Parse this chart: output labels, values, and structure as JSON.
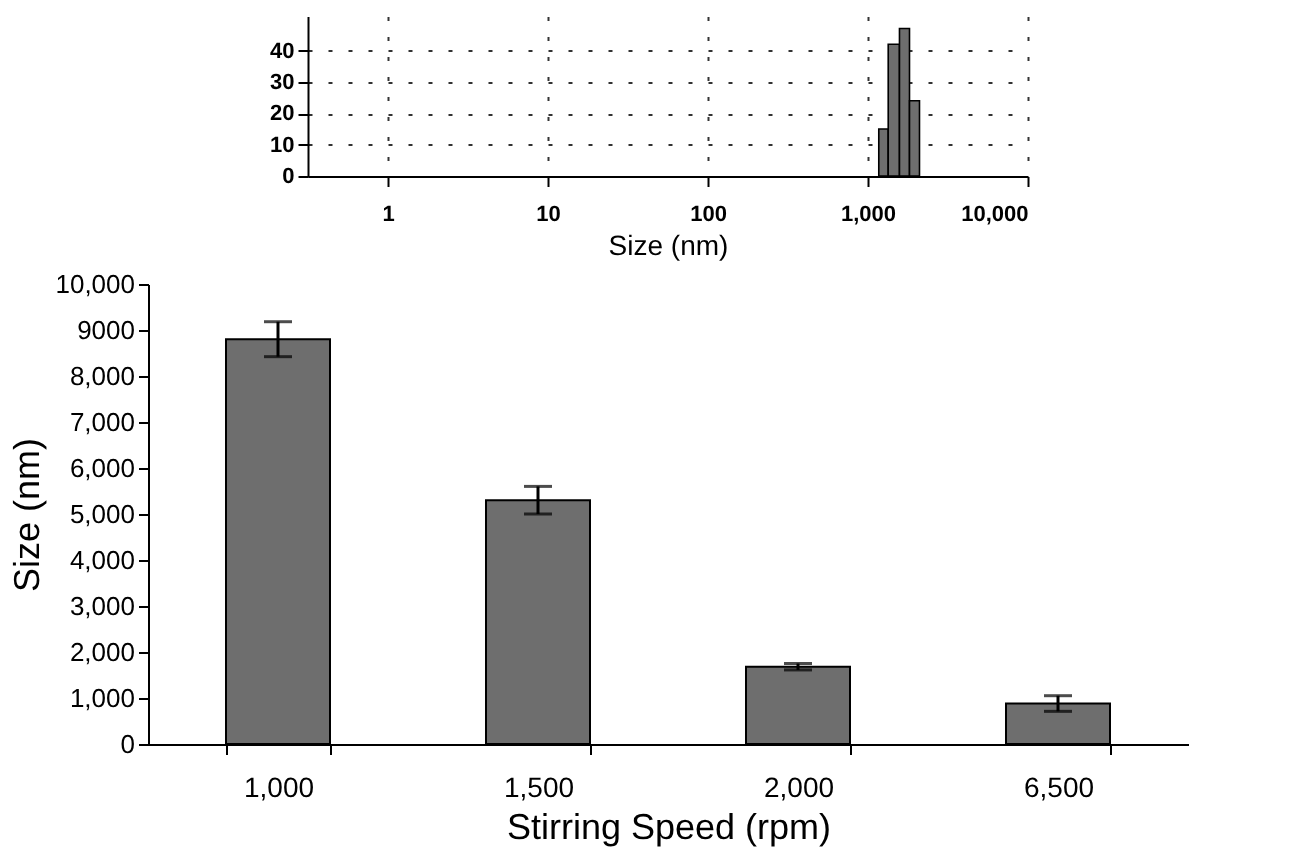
{
  "chart_data": [
    {
      "type": "bar",
      "xlabel": "Stirring Speed (rpm)",
      "ylabel": "Size (nm)",
      "categories": [
        "1,000",
        "1,500",
        "2,000",
        "6,500"
      ],
      "values": [
        8800,
        5300,
        1680,
        880
      ],
      "errors": [
        380,
        300,
        70,
        170
      ],
      "color": "#6e6e6e",
      "ylim": [
        0,
        10000
      ],
      "yticks": [
        0,
        {
          "value": 1000,
          "label": "1,000"
        },
        {
          "value": 2000,
          "label": "2,000"
        },
        {
          "value": 3000,
          "label": "3,000"
        },
        {
          "value": 4000,
          "label": "4,000"
        },
        {
          "value": 5000,
          "label": "5,000"
        },
        {
          "value": 6000,
          "label": "6,000"
        },
        {
          "value": 7000,
          "label": "7,000"
        },
        {
          "value": 8000,
          "label": "8,000"
        },
        9000,
        {
          "value": 10000,
          "label": "10,000"
        }
      ],
      "grid": false
    },
    {
      "type": "histogram",
      "xlabel": "Size (nm)",
      "log": "x",
      "bins": [
        1176,
        1347,
        1584,
        1830,
        2113
      ],
      "values": [
        15,
        42,
        47,
        24
      ],
      "color": "#6e6e6e",
      "xlim": [
        0.316,
        10000
      ],
      "xticks": [
        1,
        10,
        100,
        {
          "value": 1000,
          "label": "1,000"
        },
        {
          "value": 10000,
          "label": "10,000"
        }
      ],
      "ylim": [
        0,
        51
      ],
      "yticks": [
        0,
        10,
        20,
        30,
        40
      ],
      "grid": true
    }
  ]
}
